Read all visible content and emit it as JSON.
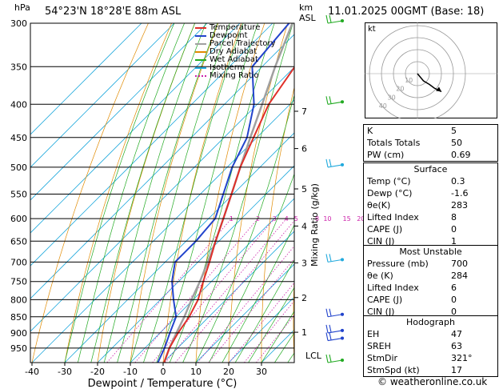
{
  "header": {
    "location": "54°23'N 18°28'E 88m ASL",
    "datetime": "11.01.2025 00GMT (Base: 18)",
    "hpa_label": "hPa",
    "km_label": "km",
    "asl_label": "ASL"
  },
  "footer": {
    "credit": "© weatheronline.co.uk"
  },
  "legend": [
    {
      "label": "Temperature",
      "color": "#e0302a",
      "style": "solid"
    },
    {
      "label": "Dewpoint",
      "color": "#2244cc",
      "style": "solid"
    },
    {
      "label": "Parcel Trajectory",
      "color": "#a0a0a0",
      "style": "solid"
    },
    {
      "label": "Dry Adiabat",
      "color": "#e08a00",
      "style": "solid"
    },
    {
      "label": "Wet Adiabat",
      "color": "#22aa22",
      "style": "solid"
    },
    {
      "label": "Isotherm",
      "color": "#22aadd",
      "style": "solid"
    },
    {
      "label": "Mixing Ratio",
      "color": "#cc22aa",
      "style": "dotted"
    }
  ],
  "chart_data": {
    "type": "line",
    "title": "",
    "xlabel": "Dewpoint / Temperature (°C)",
    "ylabel": "",
    "right_label": "Mixing Ratio (g/kg)",
    "xlim": [
      -40,
      35
    ],
    "x_ticks": [
      -40,
      -30,
      -20,
      -10,
      0,
      10,
      20,
      30
    ],
    "pressure_levels": [
      300,
      350,
      400,
      450,
      500,
      550,
      600,
      650,
      700,
      750,
      800,
      850,
      900,
      950
    ],
    "pressure_range": [
      300,
      1000
    ],
    "km_ticks": [
      {
        "label": "7",
        "p": 410
      },
      {
        "label": "6",
        "p": 468
      },
      {
        "label": "5",
        "p": 540
      },
      {
        "label": "4",
        "p": 616
      },
      {
        "label": "3",
        "p": 702
      },
      {
        "label": "2",
        "p": 794
      },
      {
        "label": "1",
        "p": 898
      }
    ],
    "lcl": {
      "label": "LCL",
      "p": 980
    },
    "mixing_ratio_labels": [
      {
        "label": "1",
        "value": 1
      },
      {
        "label": "2",
        "value": 2
      },
      {
        "label": "3",
        "value": 3
      },
      {
        "label": "4",
        "value": 4
      },
      {
        "label": "5",
        "value": 5
      },
      {
        "label": "8",
        "value": 8
      },
      {
        "label": "10",
        "value": 10
      },
      {
        "label": "15",
        "value": 15
      },
      {
        "label": "20",
        "value": 20
      },
      {
        "label": "25",
        "value": 25
      }
    ],
    "series": [
      {
        "name": "Temperature",
        "color": "#e0302a",
        "p": [
          1000,
          950,
          900,
          850,
          800,
          750,
          700,
          650,
          600,
          550,
          500,
          450,
          400,
          350,
          300
        ],
        "t": [
          0.3,
          -2.5,
          -4.5,
          -6.0,
          -8.5,
          -12.5,
          -16.5,
          -21.0,
          -25.5,
          -30.5,
          -36.0,
          -41.0,
          -46.5,
          -50.0,
          -52.0
        ]
      },
      {
        "name": "Dewpoint",
        "color": "#2244cc",
        "p": [
          1000,
          950,
          900,
          850,
          800,
          750,
          700,
          650,
          600,
          550,
          500,
          450,
          400,
          350,
          300
        ],
        "t": [
          -1.6,
          -4.0,
          -7.0,
          -10.0,
          -16.0,
          -22.0,
          -27.0,
          -27.0,
          -28.0,
          -33.0,
          -38.5,
          -43.0,
          -51.0,
          -63.0,
          -65.0
        ]
      },
      {
        "name": "Parcel Trajectory",
        "color": "#a0a0a0",
        "p": [
          1000,
          950,
          900,
          850,
          800,
          750,
          700,
          650,
          600,
          550,
          500,
          450,
          400,
          350,
          300
        ],
        "t": [
          0.3,
          -2.5,
          -5.0,
          -7.5,
          -10.5,
          -13.5,
          -17.0,
          -21.0,
          -25.5,
          -30.5,
          -36.0,
          -42.0,
          -48.5,
          -56.0,
          -64.0
        ]
      }
    ],
    "wind_barbs": [
      {
        "p": 300,
        "color": "#22aa22"
      },
      {
        "p": 400,
        "color": "#22aa22"
      },
      {
        "p": 500,
        "color": "#22aadd"
      },
      {
        "p": 700,
        "color": "#22aadd"
      },
      {
        "p": 850,
        "color": "#2244cc"
      },
      {
        "p": 900,
        "color": "#2244cc"
      },
      {
        "p": 925,
        "color": "#2244cc"
      },
      {
        "p": 1000,
        "color": "#22aa22"
      }
    ]
  },
  "hodograph": {
    "label": "kt",
    "ring_labels": [
      "10",
      "20",
      "30",
      "40"
    ],
    "vectors": [
      [
        0,
        0
      ],
      [
        5,
        -6
      ],
      [
        10,
        -9
      ],
      [
        14,
        -12
      ],
      [
        20,
        -15
      ]
    ]
  },
  "indices": [
    {
      "label": "K",
      "value": "5"
    },
    {
      "label": "Totals Totals",
      "value": "50"
    },
    {
      "label": "PW (cm)",
      "value": "0.69"
    }
  ],
  "surface": {
    "title": "Surface",
    "rows": [
      {
        "label": "Temp (°C)",
        "value": "0.3"
      },
      {
        "label": "Dewp (°C)",
        "value": "-1.6"
      },
      {
        "label": "θe(K)",
        "value": "283"
      },
      {
        "label": "Lifted Index",
        "value": "8"
      },
      {
        "label": "CAPE (J)",
        "value": "0"
      },
      {
        "label": "CIN (J)",
        "value": "1"
      }
    ]
  },
  "most_unstable": {
    "title": "Most Unstable",
    "rows": [
      {
        "label": "Pressure (mb)",
        "value": "700"
      },
      {
        "label": "θe (K)",
        "value": "284"
      },
      {
        "label": "Lifted Index",
        "value": "6"
      },
      {
        "label": "CAPE (J)",
        "value": "0"
      },
      {
        "label": "CIN (J)",
        "value": "0"
      }
    ]
  },
  "hodograph_table": {
    "title": "Hodograph",
    "rows": [
      {
        "label": "EH",
        "value": "47"
      },
      {
        "label": "SREH",
        "value": "63"
      },
      {
        "label": "StmDir",
        "value": "321°"
      },
      {
        "label": "StmSpd (kt)",
        "value": "17"
      }
    ]
  }
}
